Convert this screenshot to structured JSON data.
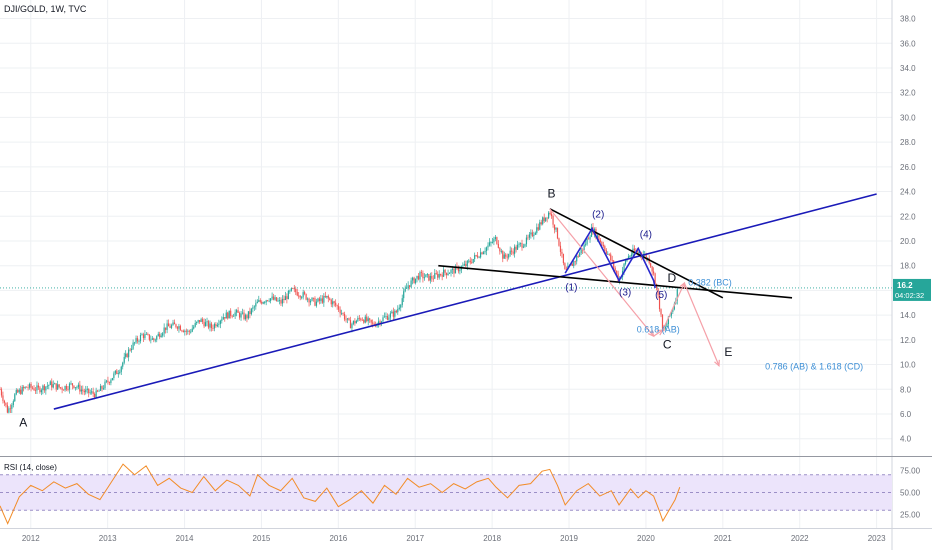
{
  "header": {
    "symbol": "DJI/GOLD, 1W, TVC"
  },
  "price_badge": {
    "price": "16.2",
    "countdown": "04:02:32"
  },
  "rsi_title": "RSI (14, close)",
  "colors": {
    "grid": "#eef0f3",
    "axis_text": "#6b6f78",
    "candle_up": "#26a69a",
    "candle_down": "#ef5350",
    "trend_line": "#1a1ab8",
    "triangle_line": "#000000",
    "wave_line": "#2828cc",
    "projection": "#f5a0a8",
    "fib_text": "#3d8fd6",
    "price_line": "#26a69a",
    "rsi_line": "#f28c28",
    "rsi_band": "#ece4fb"
  },
  "chart_data": [
    {
      "type": "candlestick",
      "title": "DJI/GOLD, 1W, TVC",
      "x_ticks": [
        "2012",
        "2013",
        "2014",
        "2015",
        "2016",
        "2017",
        "2018",
        "2019",
        "2020",
        "2021",
        "2022",
        "2023"
      ],
      "x_range": [
        2011.6,
        2023.2
      ],
      "y_ticks": [
        4.0,
        6.0,
        8.0,
        10.0,
        12.0,
        14.0,
        16.0,
        18.0,
        20.0,
        22.0,
        24.0,
        26.0,
        28.0,
        30.0,
        32.0,
        34.0,
        36.0,
        38.0
      ],
      "ylim": [
        2.6,
        39.5
      ],
      "series": [
        {
          "name": "DJI/GOLD",
          "points": [
            [
              2011.6,
              8.0
            ],
            [
              2011.7,
              6.2
            ],
            [
              2011.8,
              7.6
            ],
            [
              2011.95,
              8.2
            ],
            [
              2012.1,
              8.0
            ],
            [
              2012.25,
              8.4
            ],
            [
              2012.4,
              8.1
            ],
            [
              2012.55,
              8.4
            ],
            [
              2012.7,
              7.8
            ],
            [
              2012.85,
              7.6
            ],
            [
              2013.0,
              8.6
            ],
            [
              2013.15,
              9.6
            ],
            [
              2013.3,
              11.4
            ],
            [
              2013.45,
              12.4
            ],
            [
              2013.6,
              12.0
            ],
            [
              2013.75,
              13.0
            ],
            [
              2013.9,
              13.2
            ],
            [
              2014.05,
              12.6
            ],
            [
              2014.2,
              13.6
            ],
            [
              2014.35,
              13.0
            ],
            [
              2014.5,
              13.9
            ],
            [
              2014.65,
              14.2
            ],
            [
              2014.8,
              13.8
            ],
            [
              2014.95,
              15.0
            ],
            [
              2015.1,
              15.4
            ],
            [
              2015.25,
              15.0
            ],
            [
              2015.4,
              16.0
            ],
            [
              2015.55,
              15.6
            ],
            [
              2015.7,
              15.0
            ],
            [
              2015.85,
              15.4
            ],
            [
              2016.0,
              14.6
            ],
            [
              2016.15,
              13.2
            ],
            [
              2016.3,
              13.8
            ],
            [
              2016.45,
              13.2
            ],
            [
              2016.6,
              13.8
            ],
            [
              2016.75,
              14.2
            ],
            [
              2016.9,
              16.4
            ],
            [
              2017.05,
              17.2
            ],
            [
              2017.2,
              17.0
            ],
            [
              2017.35,
              17.4
            ],
            [
              2017.5,
              17.6
            ],
            [
              2017.65,
              18.0
            ],
            [
              2017.8,
              18.8
            ],
            [
              2017.95,
              19.6
            ],
            [
              2018.05,
              20.2
            ],
            [
              2018.15,
              18.6
            ],
            [
              2018.3,
              19.4
            ],
            [
              2018.45,
              20.0
            ],
            [
              2018.6,
              21.2
            ],
            [
              2018.75,
              22.4
            ],
            [
              2018.85,
              20.4
            ],
            [
              2018.95,
              17.4
            ],
            [
              2019.05,
              18.2
            ],
            [
              2019.2,
              19.6
            ],
            [
              2019.3,
              21.0
            ],
            [
              2019.45,
              19.6
            ],
            [
              2019.55,
              18.4
            ],
            [
              2019.65,
              16.8
            ],
            [
              2019.75,
              18.6
            ],
            [
              2019.85,
              19.2
            ],
            [
              2019.95,
              19.0
            ],
            [
              2020.05,
              18.4
            ],
            [
              2020.12,
              16.8
            ],
            [
              2020.18,
              14.6
            ],
            [
              2020.22,
              12.6
            ],
            [
              2020.28,
              13.4
            ],
            [
              2020.35,
              14.6
            ],
            [
              2020.42,
              16.2
            ]
          ]
        }
      ],
      "trend_lines": [
        {
          "name": "support",
          "from": [
            2012.3,
            6.4
          ],
          "to": [
            2023.0,
            23.8
          ]
        },
        {
          "name": "triangle-upper",
          "from": [
            2018.75,
            22.6
          ],
          "to": [
            2021.0,
            15.4
          ]
        },
        {
          "name": "triangle-lower",
          "from": [
            2017.3,
            18.0
          ],
          "to": [
            2021.9,
            15.4
          ]
        }
      ],
      "wave_path": [
        [
          2018.95,
          17.4
        ],
        [
          2019.3,
          21.0
        ],
        [
          2019.65,
          16.8
        ],
        [
          2019.9,
          19.4
        ],
        [
          2020.1,
          16.8
        ],
        [
          2020.12,
          16.2
        ]
      ],
      "projection_path": [
        [
          2018.75,
          22.6
        ],
        [
          2020.1,
          12.3
        ],
        [
          2020.22,
          12.8
        ],
        [
          2020.5,
          16.6
        ],
        [
          2020.95,
          9.9
        ]
      ],
      "labels": [
        {
          "text": "A",
          "x": 2011.85,
          "y": 5.0,
          "color": "#131722",
          "size": 12
        },
        {
          "text": "B",
          "x": 2018.72,
          "y": 23.5,
          "color": "#131722",
          "size": 12
        },
        {
          "text": "(1)",
          "x": 2018.95,
          "y": 16.0,
          "color": "#1a1a8c",
          "size": 10
        },
        {
          "text": "(2)",
          "x": 2019.3,
          "y": 21.9,
          "color": "#1a1a8c",
          "size": 10
        },
        {
          "text": "(3)",
          "x": 2019.65,
          "y": 15.6,
          "color": "#1a1a8c",
          "size": 10
        },
        {
          "text": "(4)",
          "x": 2019.92,
          "y": 20.3,
          "color": "#1a1a8c",
          "size": 10
        },
        {
          "text": "(5)",
          "x": 2020.12,
          "y": 15.4,
          "color": "#1a1a8c",
          "size": 10
        },
        {
          "text": "D",
          "x": 2020.28,
          "y": 16.7,
          "color": "#131722",
          "size": 12
        },
        {
          "text": "C",
          "x": 2020.22,
          "y": 11.3,
          "color": "#131722",
          "size": 12
        },
        {
          "text": "E",
          "x": 2021.02,
          "y": 10.7,
          "color": "#131722",
          "size": 12
        },
        {
          "text": "0.382 (BC)",
          "x": 2020.55,
          "y": 16.4,
          "color": "#3d8fd6",
          "size": 9
        },
        {
          "text": "0.618 (AB)",
          "x": 2019.88,
          "y": 12.6,
          "color": "#3d8fd6",
          "size": 9
        },
        {
          "text": "0.786 (AB) & 1.618 (CD)",
          "x": 2021.55,
          "y": 9.6,
          "color": "#3d8fd6",
          "size": 9
        }
      ]
    },
    {
      "type": "line",
      "title": "RSI (14, close)",
      "y_ticks": [
        25.0,
        50.0,
        75.0
      ],
      "ylim": [
        10,
        90
      ],
      "bands": {
        "upper": 70,
        "lower": 30
      },
      "series": [
        {
          "name": "RSI",
          "points": [
            [
              2011.6,
              35
            ],
            [
              2011.7,
              15
            ],
            [
              2011.85,
              45
            ],
            [
              2012.0,
              58
            ],
            [
              2012.15,
              52
            ],
            [
              2012.3,
              62
            ],
            [
              2012.45,
              55
            ],
            [
              2012.6,
              60
            ],
            [
              2012.75,
              48
            ],
            [
              2012.9,
              42
            ],
            [
              2013.05,
              62
            ],
            [
              2013.2,
              82
            ],
            [
              2013.35,
              70
            ],
            [
              2013.5,
              80
            ],
            [
              2013.65,
              58
            ],
            [
              2013.8,
              66
            ],
            [
              2013.95,
              55
            ],
            [
              2014.1,
              50
            ],
            [
              2014.25,
              68
            ],
            [
              2014.4,
              52
            ],
            [
              2014.55,
              64
            ],
            [
              2014.7,
              58
            ],
            [
              2014.85,
              46
            ],
            [
              2014.95,
              70
            ],
            [
              2015.1,
              58
            ],
            [
              2015.25,
              52
            ],
            [
              2015.4,
              66
            ],
            [
              2015.55,
              44
            ],
            [
              2015.7,
              40
            ],
            [
              2015.85,
              55
            ],
            [
              2016.0,
              34
            ],
            [
              2016.15,
              42
            ],
            [
              2016.3,
              52
            ],
            [
              2016.45,
              38
            ],
            [
              2016.6,
              58
            ],
            [
              2016.75,
              48
            ],
            [
              2016.9,
              66
            ],
            [
              2017.05,
              56
            ],
            [
              2017.2,
              60
            ],
            [
              2017.35,
              50
            ],
            [
              2017.5,
              60
            ],
            [
              2017.65,
              54
            ],
            [
              2017.8,
              62
            ],
            [
              2017.95,
              66
            ],
            [
              2018.05,
              56
            ],
            [
              2018.2,
              44
            ],
            [
              2018.35,
              58
            ],
            [
              2018.5,
              60
            ],
            [
              2018.65,
              74
            ],
            [
              2018.75,
              76
            ],
            [
              2018.85,
              58
            ],
            [
              2018.95,
              36
            ],
            [
              2019.1,
              52
            ],
            [
              2019.25,
              60
            ],
            [
              2019.4,
              46
            ],
            [
              2019.55,
              52
            ],
            [
              2019.65,
              36
            ],
            [
              2019.8,
              54
            ],
            [
              2019.9,
              44
            ],
            [
              2020.0,
              52
            ],
            [
              2020.1,
              46
            ],
            [
              2020.18,
              28
            ],
            [
              2020.22,
              18
            ],
            [
              2020.3,
              30
            ],
            [
              2020.38,
              42
            ],
            [
              2020.44,
              56
            ]
          ]
        }
      ]
    }
  ]
}
